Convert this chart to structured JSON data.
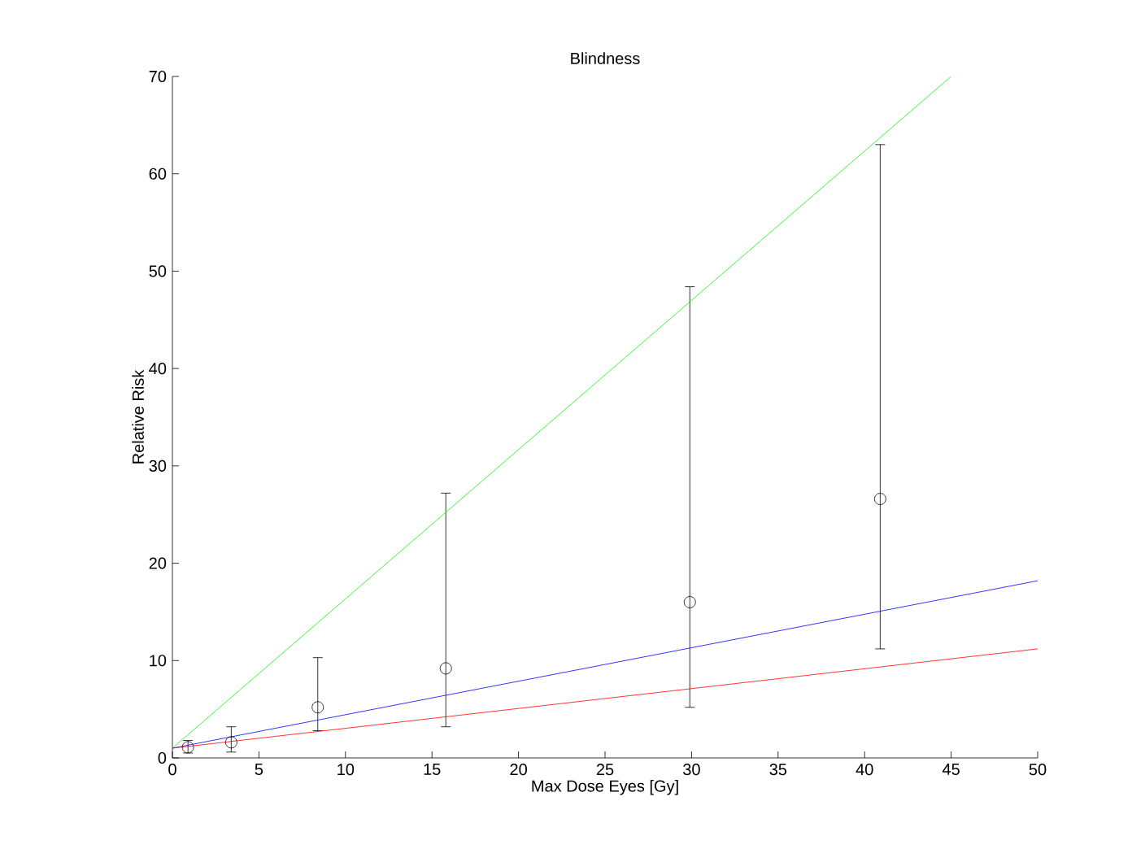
{
  "chart_data": {
    "type": "scatter",
    "title": "Blindness",
    "xlabel": "Max Dose Eyes [Gy]",
    "ylabel": "Relative Risk",
    "xlim": [
      0,
      50
    ],
    "ylim": [
      0,
      70
    ],
    "xticks": [
      0,
      5,
      10,
      15,
      20,
      25,
      30,
      35,
      40,
      45,
      50
    ],
    "yticks": [
      0,
      10,
      20,
      30,
      40,
      50,
      60,
      70
    ],
    "grid": false,
    "series": [
      {
        "color": "#000000",
        "marker": "circle",
        "x": [
          0.9,
          3.4,
          8.4,
          15.8,
          29.9,
          40.9
        ],
        "values": [
          1.1,
          1.6,
          5.2,
          9.2,
          16,
          26.6
        ],
        "errors": [
          [
            0.5,
            1.8
          ],
          [
            0.6,
            3.2
          ],
          [
            2.8,
            10.3
          ],
          [
            3.2,
            27.2
          ],
          [
            5.2,
            48.4
          ],
          [
            11.2,
            63
          ]
        ]
      },
      {
        "type": "line",
        "color": "#00ff00",
        "x": [
          0,
          45
        ],
        "values": [
          1,
          70
        ]
      },
      {
        "type": "line",
        "color": "#0000ff",
        "x": [
          0,
          50
        ],
        "values": [
          1,
          18.2
        ]
      },
      {
        "type": "line",
        "color": "#ff0000",
        "x": [
          0,
          50
        ],
        "values": [
          1,
          11.2
        ]
      }
    ]
  }
}
